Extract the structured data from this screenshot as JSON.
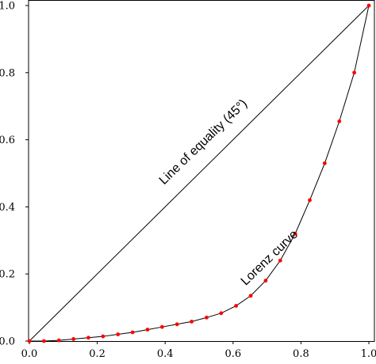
{
  "chart_data": {
    "type": "line",
    "title": "",
    "xlabel": "",
    "ylabel": "",
    "xlim": [
      0,
      1
    ],
    "ylim": [
      0,
      1
    ],
    "grid": false,
    "x_ticks": [
      "0.0",
      "0.2",
      "0.4",
      "0.6",
      "0.8",
      "1.0"
    ],
    "y_ticks": [
      "0.0",
      "0.2",
      "0.4",
      "0.6",
      "0.8",
      "1.0"
    ],
    "series": [
      {
        "x": [
          0,
          1
        ],
        "y": [
          0,
          1
        ],
        "color": "#000000",
        "markers": false
      },
      {
        "x": [
          0.0,
          0.043,
          0.087,
          0.13,
          0.174,
          0.217,
          0.261,
          0.304,
          0.348,
          0.391,
          0.435,
          0.478,
          0.522,
          0.565,
          0.609,
          0.652,
          0.696,
          0.739,
          0.783,
          0.826,
          0.87,
          0.913,
          0.957,
          1.0
        ],
        "y": [
          0.0,
          0.0,
          0.002,
          0.006,
          0.01,
          0.014,
          0.02,
          0.026,
          0.034,
          0.042,
          0.05,
          0.058,
          0.07,
          0.083,
          0.105,
          0.135,
          0.18,
          0.24,
          0.32,
          0.42,
          0.53,
          0.655,
          0.8,
          1.0
        ],
        "color": "#000000",
        "marker_color": "#ff0000",
        "markers": true
      }
    ],
    "annotations": [
      {
        "text": "Line of equality (45°)",
        "x": 0.52,
        "y": 0.585,
        "angle_deg": -44
      },
      {
        "text": "Lorenz curve",
        "x": 0.715,
        "y": 0.24,
        "angle_deg": -44
      }
    ]
  }
}
